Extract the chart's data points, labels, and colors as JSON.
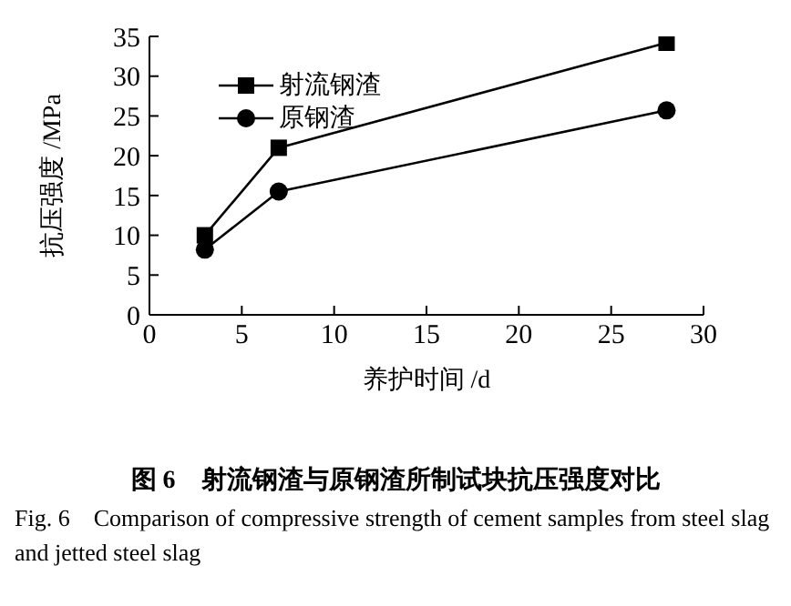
{
  "chart_data": {
    "type": "line",
    "xlabel": "养护时间 /d",
    "ylabel": "抗压强度 /MPa",
    "series": [
      {
        "name": "射流钢渣",
        "color": "#000000",
        "marker": "square",
        "x": [
          3,
          7,
          28
        ],
        "values": [
          10,
          21,
          34.2
        ]
      },
      {
        "name": "原钢渣",
        "color": "#000000",
        "marker": "circle",
        "x": [
          3,
          7,
          28
        ],
        "values": [
          8.2,
          15.5,
          25.7
        ]
      }
    ],
    "xlim": [
      0,
      30
    ],
    "xticks": [
      0,
      5,
      10,
      15,
      20,
      25,
      30
    ],
    "ylim": [
      0,
      35
    ],
    "yticks": [
      0,
      5,
      10,
      15,
      20,
      25,
      30,
      35
    ],
    "grid": false,
    "legend": "top left",
    "line_style": "solid",
    "annotations": [
      "图 6　射流钢渣与原钢渣所制试块抗压强度对比",
      "Fig. 6　Comparison of compressive strength of cement samples from steel slag and jetted steel slag"
    ]
  }
}
